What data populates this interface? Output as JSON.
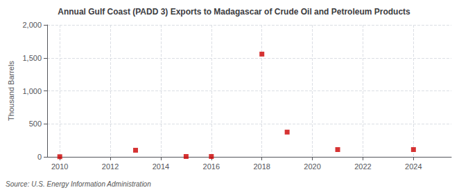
{
  "chart_data": {
    "type": "scatter",
    "title": "Annual Gulf Coast (PADD 3) Exports to Madagascar of Crude Oil and Petroleum Products",
    "ylabel": "Thousand Barrels",
    "annotation": "Source: U.S. Energy Information Administration",
    "x": [
      2010,
      2013,
      2015,
      2016,
      2018,
      2019,
      2021,
      2024
    ],
    "values": [
      2,
      100,
      5,
      5,
      1557,
      375,
      110,
      110
    ],
    "color": "#cc0000",
    "marker": "square",
    "xlim": [
      2009.5,
      2025.5
    ],
    "ylim": [
      0,
      2000
    ],
    "xticks": [
      2010,
      2012,
      2014,
      2016,
      2018,
      2020,
      2022,
      2024
    ],
    "yticks": [
      0,
      500,
      {
        "value": 1000,
        "label": "1,000"
      },
      {
        "value": 1500,
        "label": "1,500"
      },
      {
        "value": 2000,
        "label": "2,000"
      }
    ],
    "grid": true
  }
}
